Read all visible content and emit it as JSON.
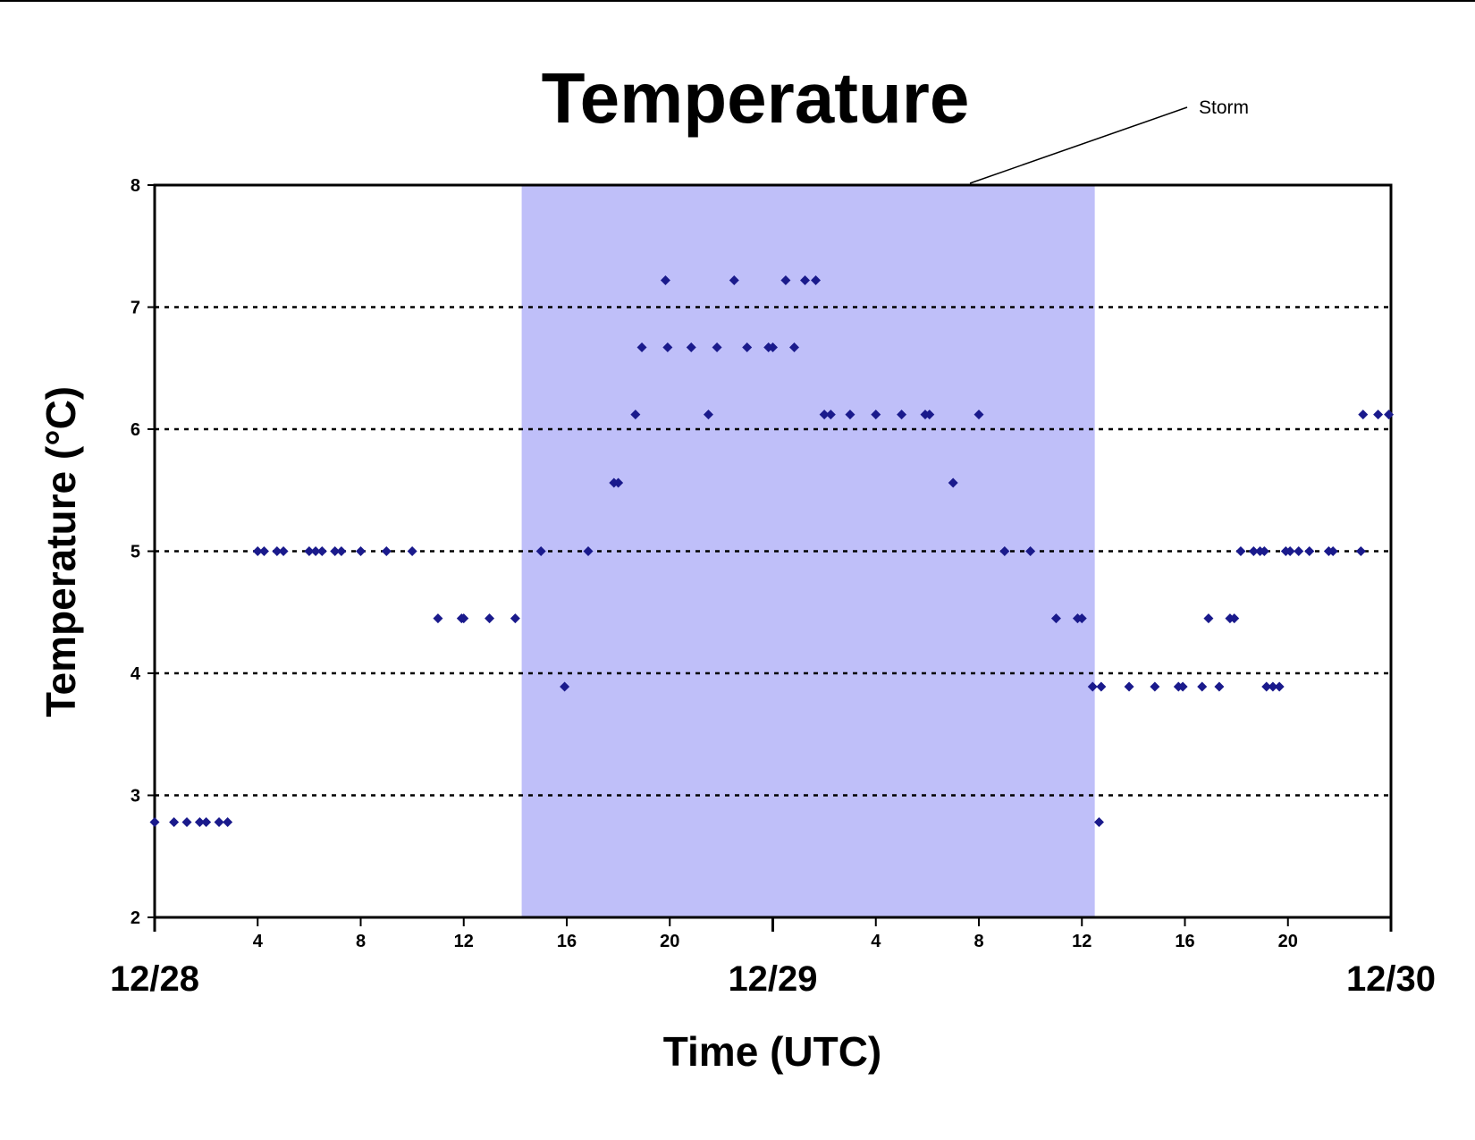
{
  "chart_data": {
    "type": "scatter",
    "title": "Temperature",
    "xlabel": "Time (UTC)",
    "ylabel": "Temperature (°C)",
    "ylim": [
      2,
      8
    ],
    "yticks": [
      "2",
      "3",
      "4",
      "5",
      "6",
      "7",
      "8"
    ],
    "xlim": [
      "12/28 00:00",
      "12/30 00:00"
    ],
    "xtick_labels": [
      {
        "at": "12/28 04:00",
        "label": "4"
      },
      {
        "at": "12/28 08:00",
        "label": "8"
      },
      {
        "at": "12/28 12:00",
        "label": "12"
      },
      {
        "at": "12/28 16:00",
        "label": "16"
      },
      {
        "at": "12/28 20:00",
        "label": "20"
      },
      {
        "at": "12/29 04:00",
        "label": "4"
      },
      {
        "at": "12/29 08:00",
        "label": "8"
      },
      {
        "at": "12/29 12:00",
        "label": "12"
      },
      {
        "at": "12/29 16:00",
        "label": "16"
      },
      {
        "at": "12/29 20:00",
        "label": "20"
      }
    ],
    "date_labels": [
      {
        "at": "12/28 00:00",
        "label": "12/28"
      },
      {
        "at": "12/29 00:00",
        "label": "12/29"
      },
      {
        "at": "12/30 00:00",
        "label": "12/30"
      }
    ],
    "grid": "horizontal dotted",
    "annotation": {
      "text": "Storm",
      "span": [
        "12/28 14:15",
        "12/29 12:30"
      ],
      "color": "#bfbff9"
    },
    "marker_color": "#1a1a8c",
    "series": [
      {
        "x": [
          "12/28 00:00",
          "12/28 00:45",
          "12/28 01:15",
          "12/28 01:45",
          "12/28 02:00",
          "12/28 02:30",
          "12/28 02:50",
          "12/28 04:00",
          "12/28 04:15",
          "12/28 04:45",
          "12/28 05:00",
          "12/28 06:00",
          "12/28 06:15",
          "12/28 06:30",
          "12/28 07:00",
          "12/28 07:15",
          "12/28 08:00",
          "12/28 09:00",
          "12/28 10:00",
          "12/28 11:00",
          "12/28 11:55",
          "12/28 12:00",
          "12/28 13:00",
          "12/28 14:00",
          "12/28 15:00",
          "12/28 15:55",
          "12/28 16:50",
          "12/28 17:50",
          "12/28 18:00",
          "12/28 18:40",
          "12/28 18:55",
          "12/28 19:50",
          "12/28 19:55",
          "12/28 20:50",
          "12/28 21:30",
          "12/28 21:50",
          "12/28 22:30",
          "12/28 23:00",
          "12/28 23:50",
          "12/29 00:00",
          "12/29 00:30",
          "12/29 00:50",
          "12/29 01:15",
          "12/29 01:40",
          "12/29 02:00",
          "12/29 02:15",
          "12/29 03:00",
          "12/29 04:00",
          "12/29 05:00",
          "12/29 05:55",
          "12/29 06:05",
          "12/29 07:00",
          "12/29 08:00",
          "12/29 09:00",
          "12/29 10:00",
          "12/29 11:00",
          "12/29 11:50",
          "12/29 12:00",
          "12/29 12:25",
          "12/29 12:45",
          "12/29 12:40",
          "12/29 13:50",
          "12/29 14:50",
          "12/29 15:45",
          "12/29 15:55",
          "12/29 16:40",
          "12/29 17:20",
          "12/29 16:55",
          "12/29 17:45",
          "12/29 17:55",
          "12/29 18:10",
          "12/29 18:40",
          "12/29 18:55",
          "12/29 19:05",
          "12/29 19:10",
          "12/29 19:25",
          "12/29 19:40",
          "12/29 19:55",
          "12/29 20:05",
          "12/29 20:25",
          "12/29 20:50",
          "12/29 21:35",
          "12/29 21:45",
          "12/29 22:50",
          "12/29 22:55",
          "12/29 23:30",
          "12/29 23:55"
        ],
        "y": [
          2.78,
          2.78,
          2.78,
          2.78,
          2.78,
          2.78,
          2.78,
          5,
          5,
          5,
          5,
          5,
          5,
          5,
          5,
          5,
          5,
          5,
          5,
          4.45,
          4.45,
          4.45,
          4.45,
          4.45,
          5,
          3.89,
          5,
          5.56,
          5.56,
          6.12,
          6.67,
          7.22,
          6.67,
          6.67,
          6.12,
          6.67,
          7.22,
          6.67,
          6.67,
          6.67,
          7.22,
          6.67,
          7.22,
          7.22,
          6.12,
          6.12,
          6.12,
          6.12,
          6.12,
          6.12,
          6.12,
          5.56,
          6.12,
          5,
          5,
          4.45,
          4.45,
          4.45,
          3.89,
          3.89,
          2.78,
          3.89,
          3.89,
          3.89,
          3.89,
          3.89,
          3.89,
          4.45,
          4.45,
          4.45,
          5,
          5,
          5,
          5,
          3.89,
          3.89,
          3.89,
          5,
          5,
          5,
          5,
          5,
          5,
          5,
          6.12,
          6.12,
          6.12
        ]
      }
    ]
  }
}
